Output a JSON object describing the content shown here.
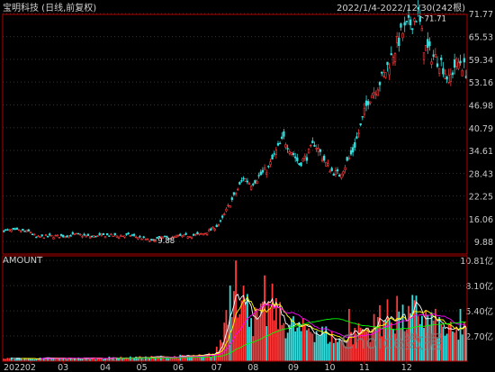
{
  "title": "宝明科技 (日线,前复权)",
  "date_range": "2022/1/4-2022/12/30(242根)",
  "lower_panel_label": "AMOUNT",
  "watermark": "Choice数据",
  "colors": {
    "background": "#000000",
    "up": "#ff3b3b",
    "down": "#36e0e0",
    "grid": "#b00000",
    "axis_text": "#c8c8c8",
    "ma5": "#ffffff",
    "ma10": "#ffff00",
    "ma20": "#ff00ff",
    "ma60": "#00ff00"
  },
  "chart_data": [
    {
      "type": "candlestick",
      "title": "宝明科技 (日线,前复权)",
      "y_ticks": [
        "71.77",
        "65.53",
        "59.34",
        "53.16",
        "46.98",
        "40.79",
        "34.61",
        "28.43",
        "22.25",
        "16.06",
        "9.88"
      ],
      "y_tick_values": [
        71.77,
        65.53,
        59.34,
        53.16,
        46.98,
        40.79,
        34.61,
        28.43,
        22.25,
        16.06,
        9.88
      ],
      "ylim": [
        6.5,
        73.5
      ],
      "x_ticks": [
        "2022",
        "02",
        "03",
        "04",
        "05",
        "06",
        "07",
        "08",
        "09",
        "10",
        "11",
        "12"
      ],
      "x_tick_sessions": [
        0,
        14,
        31,
        53,
        72,
        91,
        111,
        130,
        151,
        170,
        188,
        210
      ],
      "sessions": 242,
      "annotations": [
        {
          "text": "71.71",
          "value": 71.71,
          "session": 216,
          "direction": "max"
        },
        {
          "text": "9.88",
          "value": 9.88,
          "session": 77,
          "direction": "min"
        }
      ],
      "close_path": [
        [
          0,
          12.9
        ],
        [
          8,
          12.8
        ],
        [
          14,
          12.5
        ],
        [
          17,
          11.0
        ],
        [
          22,
          11.3
        ],
        [
          31,
          11.4
        ],
        [
          38,
          11.8
        ],
        [
          45,
          11.2
        ],
        [
          53,
          11.6
        ],
        [
          60,
          11.4
        ],
        [
          66,
          11.6
        ],
        [
          72,
          10.8
        ],
        [
          77,
          10.0
        ],
        [
          82,
          11.0
        ],
        [
          88,
          10.9
        ],
        [
          91,
          11.3
        ],
        [
          98,
          11.5
        ],
        [
          104,
          12.0
        ],
        [
          109,
          13.3
        ],
        [
          113,
          15.0
        ],
        [
          117,
          19.3
        ],
        [
          121,
          23.0
        ],
        [
          125,
          27.2
        ],
        [
          129,
          25.5
        ],
        [
          134,
          28.0
        ],
        [
          138,
          29.8
        ],
        [
          142,
          34.3
        ],
        [
          146,
          37.8
        ],
        [
          150,
          34.5
        ],
        [
          154,
          31.0
        ],
        [
          158,
          33.0
        ],
        [
          162,
          36.7
        ],
        [
          165,
          34.0
        ],
        [
          168,
          31.0
        ],
        [
          171,
          29.0
        ],
        [
          175,
          28.0
        ],
        [
          178,
          30.5
        ],
        [
          182,
          34.5
        ],
        [
          186,
          41.0
        ],
        [
          190,
          48.5
        ],
        [
          194,
          51.5
        ],
        [
          198,
          55.0
        ],
        [
          203,
          61.0
        ],
        [
          207,
          66.0
        ],
        [
          211,
          68.5
        ],
        [
          216,
          71.7
        ],
        [
          219,
          63.0
        ],
        [
          223,
          60.5
        ],
        [
          228,
          58.5
        ],
        [
          232,
          53.5
        ],
        [
          235,
          57.5
        ],
        [
          238,
          58.8
        ],
        [
          241,
          56.0
        ]
      ]
    },
    {
      "type": "bar",
      "title": "AMOUNT",
      "unit": "亿",
      "y_ticks": [
        "10.81亿",
        "8.10亿",
        "5.40亿",
        "2.70亿"
      ],
      "y_tick_values": [
        10.81,
        8.1,
        5.4,
        2.7
      ],
      "ylim": [
        0,
        11.3
      ],
      "amount_path": [
        [
          0,
          0.3
        ],
        [
          30,
          0.3
        ],
        [
          70,
          0.4
        ],
        [
          105,
          0.6
        ],
        [
          110,
          0.9
        ],
        [
          112,
          1.5
        ],
        [
          114,
          2.5
        ],
        [
          116,
          6.0
        ],
        [
          118,
          7.5
        ],
        [
          120,
          8.2
        ],
        [
          122,
          8.0
        ],
        [
          124,
          6.5
        ],
        [
          126,
          5.0
        ],
        [
          128,
          6.2
        ],
        [
          130,
          4.5
        ],
        [
          135,
          4.8
        ],
        [
          140,
          6.2
        ],
        [
          145,
          4.4
        ],
        [
          150,
          4.0
        ],
        [
          155,
          3.4
        ],
        [
          160,
          3.8
        ],
        [
          165,
          3.2
        ],
        [
          170,
          2.8
        ],
        [
          175,
          2.2
        ],
        [
          180,
          2.6
        ],
        [
          185,
          3.2
        ],
        [
          190,
          3.6
        ],
        [
          195,
          4.2
        ],
        [
          200,
          5.0
        ],
        [
          205,
          4.6
        ],
        [
          210,
          4.5
        ],
        [
          215,
          5.6
        ],
        [
          220,
          4.8
        ],
        [
          225,
          4.2
        ],
        [
          230,
          3.4
        ],
        [
          235,
          3.0
        ],
        [
          238,
          3.4
        ],
        [
          241,
          3.3
        ]
      ],
      "spikes": [
        [
          121,
          10.8
        ],
        [
          125,
          8.1
        ],
        [
          127,
          7.2
        ],
        [
          136,
          9.2
        ],
        [
          180,
          5.6
        ],
        [
          186,
          3.6
        ],
        [
          196,
          6.0
        ],
        [
          205,
          7.0
        ],
        [
          213,
          7.1
        ],
        [
          238,
          5.6
        ]
      ]
    }
  ]
}
